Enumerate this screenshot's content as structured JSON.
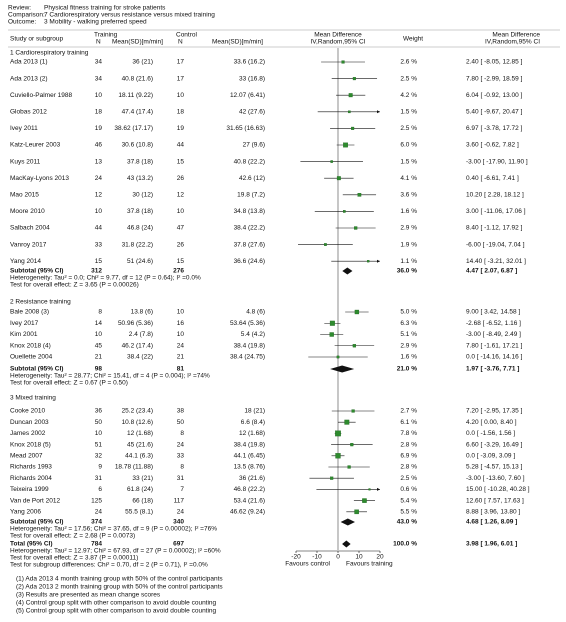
{
  "header": {
    "review_label": "Review:",
    "review": "Physical fitness training for stroke patients",
    "comparison_label": "Comparison:",
    "comparison": "7 Cardiorespiratory versus resistance versus mixed training",
    "outcome_label": "Outcome:",
    "outcome": "3 Mobility - walking preferred speed"
  },
  "columns": {
    "study": "Study or subgroup",
    "training": "Training",
    "control": "Control",
    "n": "N",
    "mean_sd": "Mean(SD)[m/min]",
    "md": "Mean Difference",
    "method": "IV,Random,95% CI",
    "weight": "Weight"
  },
  "groups": [
    {
      "title": "1 Cardiorespiratory training",
      "studies": [
        {
          "study": "Ada 2013 (1)",
          "n_t": 34,
          "mean_t": "36 (21)",
          "n_c": 17,
          "mean_c": "33.6 (16.2)",
          "weight": 2.6,
          "weight_label": "2.6 %",
          "md": 2.4,
          "lo": -8.05,
          "hi": 12.85,
          "ci_label": "2.40 [ -8.05, 12.85 ]"
        },
        {
          "study": "Ada 2013 (2)",
          "n_t": 34,
          "mean_t": "40.8 (21.6)",
          "n_c": 17,
          "mean_c": "33 (16.8)",
          "weight": 2.5,
          "weight_label": "2.5 %",
          "md": 7.8,
          "lo": -2.99,
          "hi": 18.59,
          "ci_label": "7.80 [ -2.99, 18.59 ]"
        },
        {
          "study": "Cuviello-Palmer 1988",
          "n_t": 10,
          "mean_t": "18.11 (9.22)",
          "n_c": 10,
          "mean_c": "12.07 (6.41)",
          "weight": 4.2,
          "weight_label": "4.2 %",
          "md": 6.04,
          "lo": -0.92,
          "hi": 13.0,
          "ci_label": "6.04 [ -0.92, 13.00 ]"
        },
        {
          "study": "Globas 2012",
          "n_t": 18,
          "mean_t": "47.4 (17.4)",
          "n_c": 18,
          "mean_c": "42 (27.6)",
          "weight": 1.5,
          "weight_label": "1.5 %",
          "md": 5.4,
          "lo": -9.67,
          "hi": 20.47,
          "ci_label": "5.40 [ -9.67, 20.47 ]"
        },
        {
          "study": "Ivey 2011",
          "n_t": 19,
          "mean_t": "38.62 (17.17)",
          "n_c": 19,
          "mean_c": "31.65 (16.63)",
          "weight": 2.5,
          "weight_label": "2.5 %",
          "md": 6.97,
          "lo": -3.78,
          "hi": 17.72,
          "ci_label": "6.97 [ -3.78, 17.72 ]"
        },
        {
          "study": "Katz-Leurer 2003",
          "n_t": 46,
          "mean_t": "30.6 (10.8)",
          "n_c": 44,
          "mean_c": "27 (9.6)",
          "weight": 6.0,
          "weight_label": "6.0 %",
          "md": 3.6,
          "lo": -0.62,
          "hi": 7.82,
          "ci_label": "3.60 [ -0.62, 7.82 ]"
        },
        {
          "study": "Kuys 2011",
          "n_t": 13,
          "mean_t": "37.8 (18)",
          "n_c": 15,
          "mean_c": "40.8 (22.2)",
          "weight": 1.5,
          "weight_label": "1.5 %",
          "md": -3.0,
          "lo": -17.9,
          "hi": 11.9,
          "ci_label": "-3.00 [ -17.90, 11.90 ]"
        },
        {
          "study": "MacKay-Lyons 2013",
          "n_t": 24,
          "mean_t": "43 (13.2)",
          "n_c": 26,
          "mean_c": "42.6 (12)",
          "weight": 4.1,
          "weight_label": "4.1 %",
          "md": 0.4,
          "lo": -6.61,
          "hi": 7.41,
          "ci_label": "0.40 [ -6.61, 7.41 ]"
        },
        {
          "study": "Mao 2015",
          "n_t": 12,
          "mean_t": "30 (12)",
          "n_c": 12,
          "mean_c": "19.8 (7.2)",
          "weight": 3.6,
          "weight_label": "3.6 %",
          "md": 10.2,
          "lo": 2.28,
          "hi": 18.12,
          "ci_label": "10.20 [ 2.28, 18.12 ]"
        },
        {
          "study": "Moore 2010",
          "n_t": 10,
          "mean_t": "37.8 (18)",
          "n_c": 10,
          "mean_c": "34.8 (13.8)",
          "weight": 1.6,
          "weight_label": "1.6 %",
          "md": 3.0,
          "lo": -11.06,
          "hi": 17.06,
          "ci_label": "3.00 [ -11.06, 17.06 ]"
        },
        {
          "study": "Salbach 2004",
          "n_t": 44,
          "mean_t": "46.8 (24)",
          "n_c": 47,
          "mean_c": "38.4 (22.2)",
          "weight": 2.9,
          "weight_label": "2.9 %",
          "md": 8.4,
          "lo": -1.12,
          "hi": 17.92,
          "ci_label": "8.40 [ -1.12, 17.92 ]"
        },
        {
          "study": "Vanroy 2017",
          "n_t": 33,
          "mean_t": "31.8 (22.2)",
          "n_c": 26,
          "mean_c": "37.8 (27.6)",
          "weight": 1.9,
          "weight_label": "1.9 %",
          "md": -6.0,
          "lo": -19.04,
          "hi": 7.04,
          "ci_label": "-6.00 [ -19.04, 7.04 ]"
        },
        {
          "study": "Yang 2014",
          "n_t": 15,
          "mean_t": "51 (24.6)",
          "n_c": 15,
          "mean_c": "36.6 (24.6)",
          "weight": 1.1,
          "weight_label": "1.1 %",
          "md": 14.4,
          "lo": -3.21,
          "hi": 32.01,
          "ci_label": "14.40 [ -3.21, 32.01 ]"
        }
      ],
      "subtotal": {
        "label": "Subtotal (95% CI)",
        "n_t": 312,
        "n_c": 276,
        "weight_label": "36.0 %",
        "md": 4.47,
        "lo": 2.07,
        "hi": 6.87,
        "ci_label": "4.47 [ 2.07, 6.87 ]"
      },
      "heterogeneity": "Heterogeneity: Tau² = 0.0; Chi² = 9.77, df = 12 (P = 0.64); I² =0.0%",
      "overall_effect": "Test for overall effect: Z = 3.65 (P = 0.00026)"
    },
    {
      "title": "2 Resistance training",
      "studies": [
        {
          "study": "Bale 2008 (3)",
          "n_t": 8,
          "mean_t": "13.8 (6)",
          "n_c": 10,
          "mean_c": "4.8 (6)",
          "weight": 5.0,
          "weight_label": "5.0 %",
          "md": 9.0,
          "lo": 3.42,
          "hi": 14.58,
          "ci_label": "9.00 [ 3.42, 14.58 ]"
        },
        {
          "study": "Ivey 2017",
          "n_t": 14,
          "mean_t": "50.96 (5.36)",
          "n_c": 16,
          "mean_c": "53.64 (5.36)",
          "weight": 6.3,
          "weight_label": "6.3 %",
          "md": -2.68,
          "lo": -6.52,
          "hi": 1.16,
          "ci_label": "-2.68 [ -6.52, 1.16 ]"
        },
        {
          "study": "Kim 2001",
          "n_t": 10,
          "mean_t": "2.4 (7.8)",
          "n_c": 10,
          "mean_c": "5.4 (4.2)",
          "weight": 5.1,
          "weight_label": "5.1 %",
          "md": -3.0,
          "lo": -8.49,
          "hi": 2.49,
          "ci_label": "-3.00 [ -8.49, 2.49 ]"
        },
        {
          "study": "Knox 2018 (4)",
          "n_t": 45,
          "mean_t": "46.2 (17.4)",
          "n_c": 24,
          "mean_c": "38.4 (19.8)",
          "weight": 2.9,
          "weight_label": "2.9 %",
          "md": 7.8,
          "lo": -1.61,
          "hi": 17.21,
          "ci_label": "7.80 [ -1.61, 17.21 ]"
        },
        {
          "study": "Ouellette 2004",
          "n_t": 21,
          "mean_t": "38.4 (22)",
          "n_c": 21,
          "mean_c": "38.4 (24.75)",
          "weight": 1.6,
          "weight_label": "1.6 %",
          "md": 0.0,
          "lo": -14.16,
          "hi": 14.16,
          "ci_label": "0.0 [ -14.16, 14.16 ]"
        }
      ],
      "subtotal": {
        "label": "Subtotal (95% CI)",
        "n_t": 98,
        "n_c": 81,
        "weight_label": "21.0 %",
        "md": 1.97,
        "lo": -3.76,
        "hi": 7.71,
        "ci_label": "1.97 [ -3.76, 7.71 ]"
      },
      "heterogeneity": "Heterogeneity: Tau² = 28.77; Chi² = 15.41, df = 4 (P = 0.004); I² =74%",
      "overall_effect": "Test for overall effect: Z = 0.67 (P = 0.50)"
    },
    {
      "title": "3 Mixed training",
      "studies": [
        {
          "study": "Cooke 2010",
          "n_t": 36,
          "mean_t": "25.2 (23.4)",
          "n_c": 38,
          "mean_c": "18 (21)",
          "weight": 2.7,
          "weight_label": "2.7 %",
          "md": 7.2,
          "lo": -2.95,
          "hi": 17.35,
          "ci_label": "7.20 [ -2.95, 17.35 ]"
        },
        {
          "study": "Duncan 2003",
          "n_t": 50,
          "mean_t": "10.8 (12.6)",
          "n_c": 50,
          "mean_c": "6.6 (8.4)",
          "weight": 6.1,
          "weight_label": "6.1 %",
          "md": 4.2,
          "lo": 0.0,
          "hi": 8.4,
          "ci_label": "4.20 [ 0.00, 8.40 ]"
        },
        {
          "study": "James 2002",
          "n_t": 10,
          "mean_t": "12 (1.68)",
          "n_c": 8,
          "mean_c": "12 (1.68)",
          "weight": 7.8,
          "weight_label": "7.8 %",
          "md": 0.0,
          "lo": -1.56,
          "hi": 1.56,
          "ci_label": "0.0 [ -1.56, 1.56 ]"
        },
        {
          "study": "Knox 2018 (5)",
          "n_t": 51,
          "mean_t": "45 (21.6)",
          "n_c": 24,
          "mean_c": "38.4 (19.8)",
          "weight": 2.8,
          "weight_label": "2.8 %",
          "md": 6.6,
          "lo": -3.29,
          "hi": 16.49,
          "ci_label": "6.60 [ -3.29, 16.49 ]"
        },
        {
          "study": "Mead 2007",
          "n_t": 32,
          "mean_t": "44.1 (6.3)",
          "n_c": 33,
          "mean_c": "44.1 (6.45)",
          "weight": 6.9,
          "weight_label": "6.9 %",
          "md": 0.0,
          "lo": -3.09,
          "hi": 3.09,
          "ci_label": "0.0 [ -3.09, 3.09 ]"
        },
        {
          "study": "Richards 1993",
          "n_t": 9,
          "mean_t": "18.78 (11.88)",
          "n_c": 8,
          "mean_c": "13.5 (8.76)",
          "weight": 2.8,
          "weight_label": "2.8 %",
          "md": 5.28,
          "lo": -4.57,
          "hi": 15.13,
          "ci_label": "5.28 [ -4.57, 15.13 ]"
        },
        {
          "study": "Richards 2004",
          "n_t": 31,
          "mean_t": "33 (21)",
          "n_c": 31,
          "mean_c": "36 (21.6)",
          "weight": 2.5,
          "weight_label": "2.5 %",
          "md": -3.0,
          "lo": -13.6,
          "hi": 7.6,
          "ci_label": "-3.00 [ -13.60, 7.60 ]"
        },
        {
          "study": "Teixeira 1999",
          "n_t": 6,
          "mean_t": "61.8 (24)",
          "n_c": 7,
          "mean_c": "46.8 (22.2)",
          "weight": 0.6,
          "weight_label": "0.6 %",
          "md": 15.0,
          "lo": -10.28,
          "hi": 40.28,
          "ci_label": "15.00 [ -10.28, 40.28 ]"
        },
        {
          "study": "Van de Port 2012",
          "n_t": 125,
          "mean_t": "66 (18)",
          "n_c": 117,
          "mean_c": "53.4 (21.6)",
          "weight": 5.4,
          "weight_label": "5.4 %",
          "md": 12.6,
          "lo": 7.57,
          "hi": 17.63,
          "ci_label": "12.60 [ 7.57, 17.63 ]"
        },
        {
          "study": "Yang 2006",
          "n_t": 24,
          "mean_t": "55.5 (8.1)",
          "n_c": 24,
          "mean_c": "46.62 (9.24)",
          "weight": 5.5,
          "weight_label": "5.5 %",
          "md": 8.88,
          "lo": 3.96,
          "hi": 13.8,
          "ci_label": "8.88 [ 3.96, 13.80 ]"
        }
      ],
      "subtotal": {
        "label": "Subtotal (95% CI)",
        "n_t": 374,
        "n_c": 340,
        "weight_label": "43.0 %",
        "md": 4.68,
        "lo": 1.26,
        "hi": 8.09,
        "ci_label": "4.68 [ 1.26, 8.09 ]"
      },
      "heterogeneity": "Heterogeneity: Tau² = 17.56; Chi² = 37.65, df = 9 (P = 0.00002); I² =76%",
      "overall_effect": "Test for overall effect: Z = 2.68 (P = 0.0073)"
    }
  ],
  "total": {
    "label": "Total (95% CI)",
    "n_t": 784,
    "n_c": 697,
    "weight_label": "100.0 %",
    "md": 3.98,
    "lo": 1.96,
    "hi": 6.01,
    "ci_label": "3.98 [ 1.96, 6.01 ]"
  },
  "total_heterogeneity": "Heterogeneity: Tau² = 12.97; Chi² = 67.93, df = 27 (P = 0.00002); I² =60%",
  "total_effect": "Test for overall effect: Z = 3.87 (P = 0.00011)",
  "subgroup_differences": "Test for subgroup differences: Chi² = 0.70, df = 2 (P = 0.71), I² =0.0%",
  "axis": {
    "xlim": [
      -20,
      20
    ],
    "xticks": [
      -20,
      -10,
      0,
      10,
      20
    ],
    "left_label": "Favours control",
    "right_label": "Favours training"
  },
  "footnotes": [
    "(1) Ada 2013 4 month training group with 50% of the control participants",
    "(2) Ada 2013 2 month training group with 50% of the control participants",
    "(3) Results are presented as mean change scores",
    "(4) Control group split with other comparison to avoid double counting",
    "(5) Control group split with other comparison to avoid double counting"
  ]
}
